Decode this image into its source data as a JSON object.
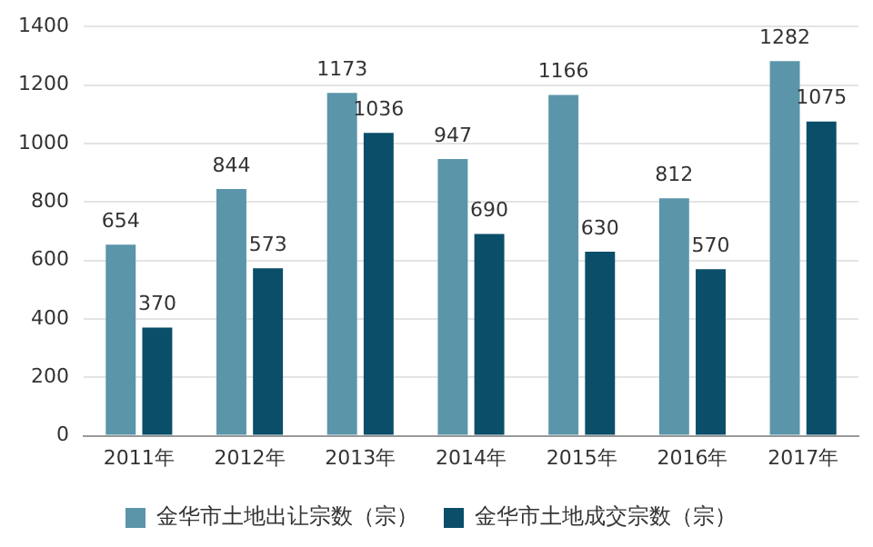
{
  "chart_data": {
    "type": "bar",
    "categories": [
      "2011年",
      "2012年",
      "2013年",
      "2014年",
      "2015年",
      "2016年",
      "2017年"
    ],
    "series": [
      {
        "name": "金华市土地出让宗数（宗）",
        "color": "#5b95aa",
        "values": [
          654,
          844,
          1173,
          947,
          1166,
          812,
          1282
        ]
      },
      {
        "name": "金华市土地成交宗数（宗）",
        "color": "#0b4e69",
        "values": [
          370,
          573,
          1036,
          690,
          630,
          570,
          1075
        ]
      }
    ],
    "ylim": [
      0,
      1400
    ],
    "yticks": [
      0,
      200,
      400,
      600,
      800,
      1000,
      1200,
      1400
    ],
    "grid": "y",
    "legend": "bottom",
    "data_labels": true
  }
}
